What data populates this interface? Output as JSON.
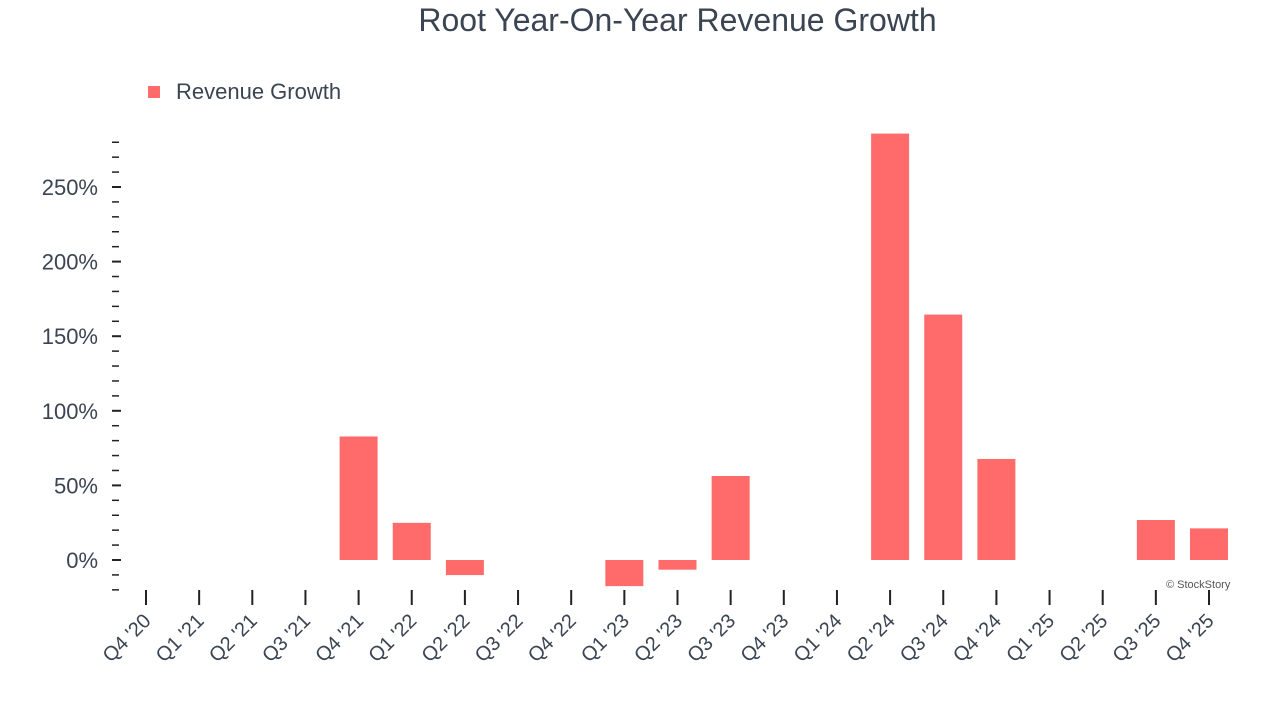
{
  "chart_data": {
    "type": "bar",
    "title": "Root Year-On-Year Revenue Growth",
    "categories": [
      "Q4 '20",
      "Q1 '21",
      "Q2 '21",
      "Q3 '21",
      "Q4 '21",
      "Q1 '22",
      "Q2 '22",
      "Q3 '22",
      "Q4 '22",
      "Q1 '23",
      "Q2 '23",
      "Q3 '23",
      "Q4 '23",
      "Q1 '24",
      "Q2 '24",
      "Q3 '24",
      "Q4 '24",
      "Q1 '25",
      "Q2 '25",
      "Q3 '25",
      "Q4 '25"
    ],
    "series": [
      {
        "name": "Revenue Growth",
        "values": [
          null,
          null,
          null,
          null,
          82.8,
          24.9,
          -10.1,
          null,
          null,
          -17.5,
          -6.5,
          56.3,
          null,
          null,
          285.8,
          164.5,
          67.7,
          null,
          null,
          26.8,
          21.2
        ]
      }
    ],
    "yticks": [
      "0%",
      "50%",
      "100%",
      "150%",
      "200%",
      "250%"
    ],
    "ylim": [
      -20,
      290
    ],
    "grid": false,
    "legend_position": "top-left",
    "colors": {
      "bar": "#ff6b6b",
      "text": "#3b4452"
    }
  },
  "credit": "© StockStory"
}
